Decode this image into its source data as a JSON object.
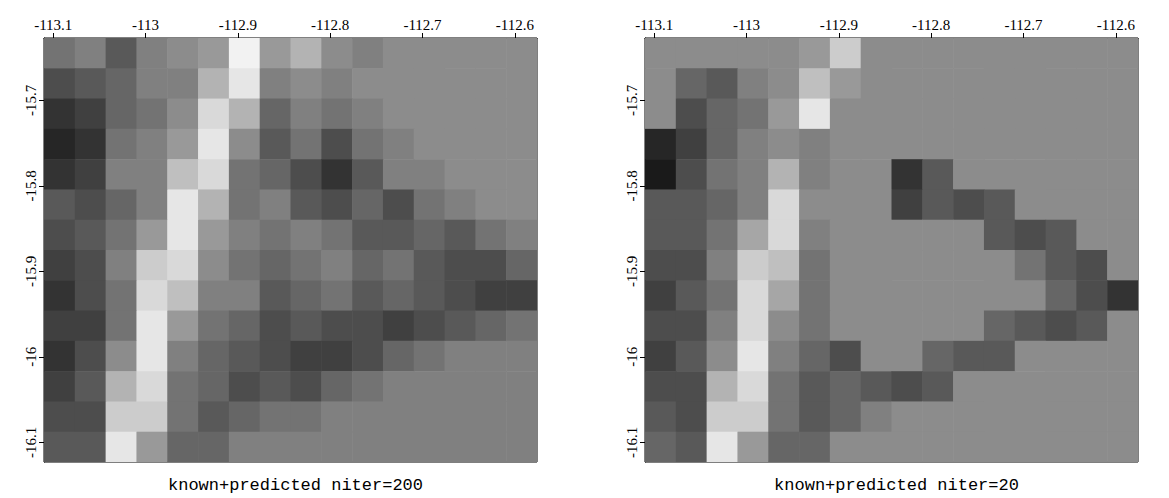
{
  "chart_data": [
    {
      "type": "heatmap",
      "title": "known+predicted niter=200",
      "xlim": [
        -113.11,
        -112.576
      ],
      "ylim": [
        -16.123,
        -15.627
      ],
      "xticks": [
        -113.1,
        -113,
        -112.9,
        -112.8,
        -112.7,
        -112.6
      ],
      "yticks": [
        -16.1,
        -16,
        -15.9,
        -15.8,
        -15.7
      ],
      "grid": false,
      "clim": [
        0,
        1
      ],
      "cells": [
        [
          0.45,
          0.5,
          0.35,
          0.5,
          0.55,
          0.6,
          0.95,
          0.6,
          0.7,
          0.55,
          0.5,
          0.55,
          0.55,
          0.55,
          0.55,
          0.55
        ],
        [
          0.3,
          0.35,
          0.4,
          0.5,
          0.5,
          0.7,
          0.9,
          0.5,
          0.55,
          0.5,
          0.55,
          0.55,
          0.55,
          0.55,
          0.55,
          0.55
        ],
        [
          0.2,
          0.25,
          0.4,
          0.45,
          0.55,
          0.85,
          0.7,
          0.4,
          0.5,
          0.45,
          0.5,
          0.55,
          0.55,
          0.55,
          0.55,
          0.55
        ],
        [
          0.15,
          0.2,
          0.45,
          0.5,
          0.6,
          0.9,
          0.55,
          0.35,
          0.45,
          0.3,
          0.45,
          0.5,
          0.55,
          0.55,
          0.55,
          0.55
        ],
        [
          0.2,
          0.25,
          0.5,
          0.5,
          0.75,
          0.85,
          0.45,
          0.4,
          0.3,
          0.2,
          0.35,
          0.5,
          0.5,
          0.55,
          0.55,
          0.55
        ],
        [
          0.35,
          0.3,
          0.4,
          0.5,
          0.9,
          0.7,
          0.45,
          0.5,
          0.35,
          0.3,
          0.4,
          0.3,
          0.45,
          0.5,
          0.55,
          0.55
        ],
        [
          0.3,
          0.35,
          0.45,
          0.6,
          0.9,
          0.6,
          0.5,
          0.45,
          0.5,
          0.45,
          0.35,
          0.35,
          0.4,
          0.35,
          0.45,
          0.5
        ],
        [
          0.25,
          0.3,
          0.5,
          0.8,
          0.85,
          0.55,
          0.45,
          0.4,
          0.45,
          0.5,
          0.4,
          0.45,
          0.35,
          0.3,
          0.3,
          0.4
        ],
        [
          0.2,
          0.3,
          0.45,
          0.85,
          0.75,
          0.5,
          0.5,
          0.35,
          0.4,
          0.45,
          0.35,
          0.4,
          0.35,
          0.3,
          0.25,
          0.25
        ],
        [
          0.25,
          0.25,
          0.45,
          0.9,
          0.6,
          0.45,
          0.4,
          0.3,
          0.35,
          0.3,
          0.3,
          0.25,
          0.3,
          0.35,
          0.4,
          0.45
        ],
        [
          0.2,
          0.3,
          0.55,
          0.9,
          0.5,
          0.4,
          0.35,
          0.3,
          0.25,
          0.25,
          0.3,
          0.4,
          0.45,
          0.5,
          0.5,
          0.5
        ],
        [
          0.25,
          0.35,
          0.7,
          0.85,
          0.45,
          0.4,
          0.3,
          0.35,
          0.3,
          0.4,
          0.45,
          0.5,
          0.5,
          0.5,
          0.5,
          0.5
        ],
        [
          0.3,
          0.3,
          0.8,
          0.8,
          0.45,
          0.35,
          0.4,
          0.45,
          0.45,
          0.5,
          0.5,
          0.5,
          0.5,
          0.5,
          0.5,
          0.5
        ],
        [
          0.35,
          0.35,
          0.9,
          0.6,
          0.4,
          0.4,
          0.5,
          0.5,
          0.5,
          0.5,
          0.5,
          0.5,
          0.5,
          0.5,
          0.5,
          0.5
        ]
      ]
    },
    {
      "type": "heatmap",
      "title": "known+predicted niter=20",
      "xlim": [
        -113.11,
        -112.576
      ],
      "ylim": [
        -16.123,
        -15.627
      ],
      "xticks": [
        -113.1,
        -113,
        -112.9,
        -112.8,
        -112.7,
        -112.6
      ],
      "yticks": [
        -16.1,
        -16,
        -15.9,
        -15.8,
        -15.7
      ],
      "grid": false,
      "clim": [
        0,
        1
      ],
      "cells": [
        [
          0.55,
          0.55,
          0.55,
          0.55,
          0.55,
          0.6,
          0.8,
          0.55,
          0.55,
          0.55,
          0.55,
          0.55,
          0.55,
          0.55,
          0.55,
          0.55
        ],
        [
          0.55,
          0.4,
          0.35,
          0.5,
          0.55,
          0.75,
          0.6,
          0.55,
          0.55,
          0.55,
          0.55,
          0.55,
          0.55,
          0.55,
          0.55,
          0.55
        ],
        [
          0.55,
          0.3,
          0.4,
          0.45,
          0.6,
          0.9,
          0.55,
          0.55,
          0.55,
          0.55,
          0.55,
          0.55,
          0.55,
          0.55,
          0.55,
          0.55
        ],
        [
          0.15,
          0.25,
          0.4,
          0.5,
          0.55,
          0.5,
          0.55,
          0.55,
          0.55,
          0.55,
          0.55,
          0.55,
          0.55,
          0.55,
          0.55,
          0.55
        ],
        [
          0.1,
          0.3,
          0.45,
          0.5,
          0.7,
          0.5,
          0.55,
          0.55,
          0.2,
          0.35,
          0.55,
          0.55,
          0.55,
          0.55,
          0.55,
          0.55
        ],
        [
          0.35,
          0.35,
          0.4,
          0.5,
          0.85,
          0.55,
          0.55,
          0.55,
          0.25,
          0.35,
          0.3,
          0.35,
          0.55,
          0.55,
          0.55,
          0.55
        ],
        [
          0.35,
          0.35,
          0.45,
          0.65,
          0.85,
          0.5,
          0.55,
          0.55,
          0.55,
          0.55,
          0.55,
          0.35,
          0.3,
          0.35,
          0.55,
          0.55
        ],
        [
          0.3,
          0.3,
          0.5,
          0.8,
          0.75,
          0.45,
          0.55,
          0.55,
          0.55,
          0.55,
          0.55,
          0.55,
          0.45,
          0.35,
          0.3,
          0.55
        ],
        [
          0.25,
          0.35,
          0.45,
          0.85,
          0.65,
          0.45,
          0.55,
          0.55,
          0.55,
          0.55,
          0.55,
          0.55,
          0.55,
          0.4,
          0.3,
          0.2
        ],
        [
          0.3,
          0.3,
          0.5,
          0.85,
          0.55,
          0.45,
          0.55,
          0.55,
          0.55,
          0.55,
          0.55,
          0.4,
          0.35,
          0.3,
          0.35,
          0.55
        ],
        [
          0.25,
          0.35,
          0.55,
          0.9,
          0.5,
          0.4,
          0.3,
          0.55,
          0.55,
          0.4,
          0.35,
          0.35,
          0.55,
          0.55,
          0.55,
          0.55
        ],
        [
          0.3,
          0.3,
          0.7,
          0.85,
          0.45,
          0.35,
          0.4,
          0.35,
          0.3,
          0.35,
          0.55,
          0.55,
          0.55,
          0.55,
          0.55,
          0.55
        ],
        [
          0.35,
          0.3,
          0.8,
          0.8,
          0.45,
          0.35,
          0.4,
          0.5,
          0.55,
          0.55,
          0.55,
          0.55,
          0.55,
          0.55,
          0.55,
          0.55
        ],
        [
          0.4,
          0.35,
          0.9,
          0.6,
          0.4,
          0.4,
          0.55,
          0.55,
          0.55,
          0.55,
          0.55,
          0.55,
          0.55,
          0.55,
          0.55,
          0.55
        ]
      ]
    }
  ]
}
